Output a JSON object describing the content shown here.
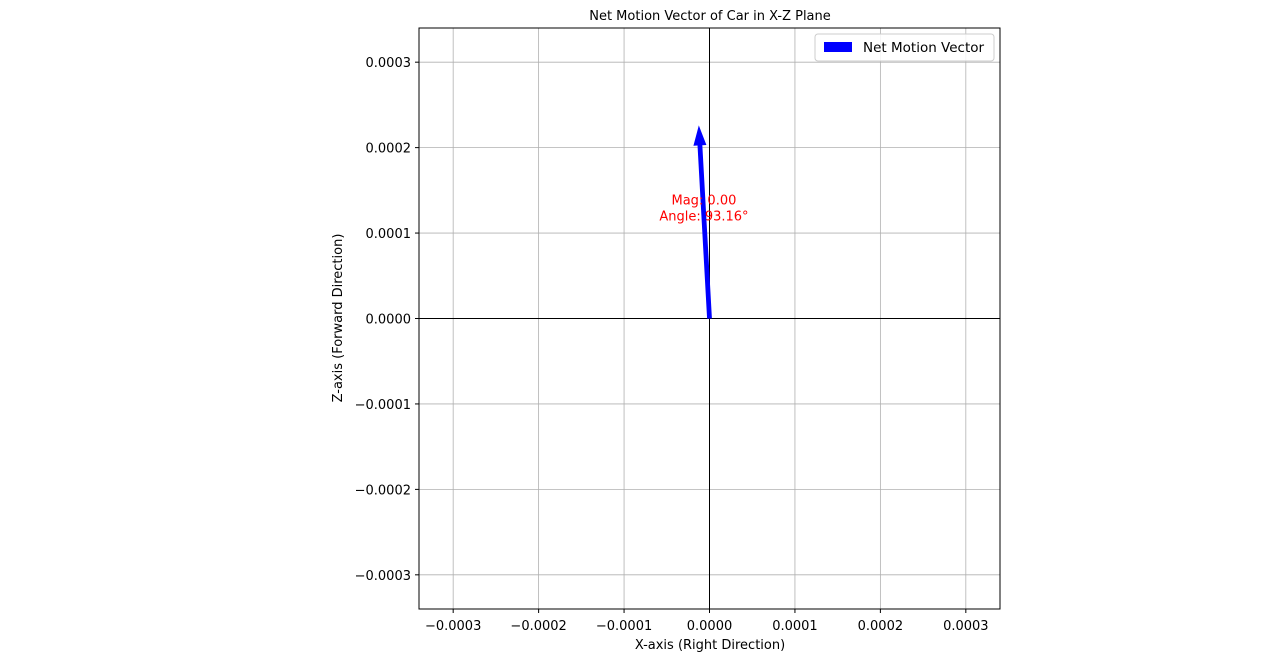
{
  "chart_data": {
    "type": "quiver",
    "title": "Net Motion Vector of Car in X-Z Plane",
    "xlabel": "X-axis (Right Direction)",
    "ylabel": "Z-axis (Forward Direction)",
    "xlim": [
      -0.00034,
      0.00034
    ],
    "ylim": [
      -0.00034,
      0.00034
    ],
    "xticks": [
      -0.0003,
      -0.0002,
      -0.0001,
      0.0,
      0.0001,
      0.0002,
      0.0003
    ],
    "xtick_labels": [
      "−0.0003",
      "−0.0002",
      "−0.0001",
      "0.0000",
      "0.0001",
      "0.0002",
      "0.0003"
    ],
    "yticks": [
      0.0003,
      0.0002,
      0.0001,
      0.0,
      -0.0001,
      -0.0002,
      -0.0003
    ],
    "ytick_labels": [
      "0.0003",
      "0.0002",
      "0.0001",
      "0.0000",
      "−0.0001",
      "−0.0002",
      "−0.0003"
    ],
    "grid": true,
    "legend_position": "top-right",
    "series": [
      {
        "name": "Net Motion Vector",
        "color": "#0000ff",
        "origin": [
          0.0,
          0.0
        ],
        "vector": [
          -1.25e-05,
          0.000226
        ]
      }
    ],
    "annotation": {
      "line1": "Mag: 0.00",
      "line2": "Angle: 93.16°",
      "color": "#ff0000",
      "x": -6.5e-06,
      "y": 0.00013
    },
    "reference_lines": {
      "x": 0.0,
      "y": 0.0,
      "color": "#000000"
    }
  }
}
